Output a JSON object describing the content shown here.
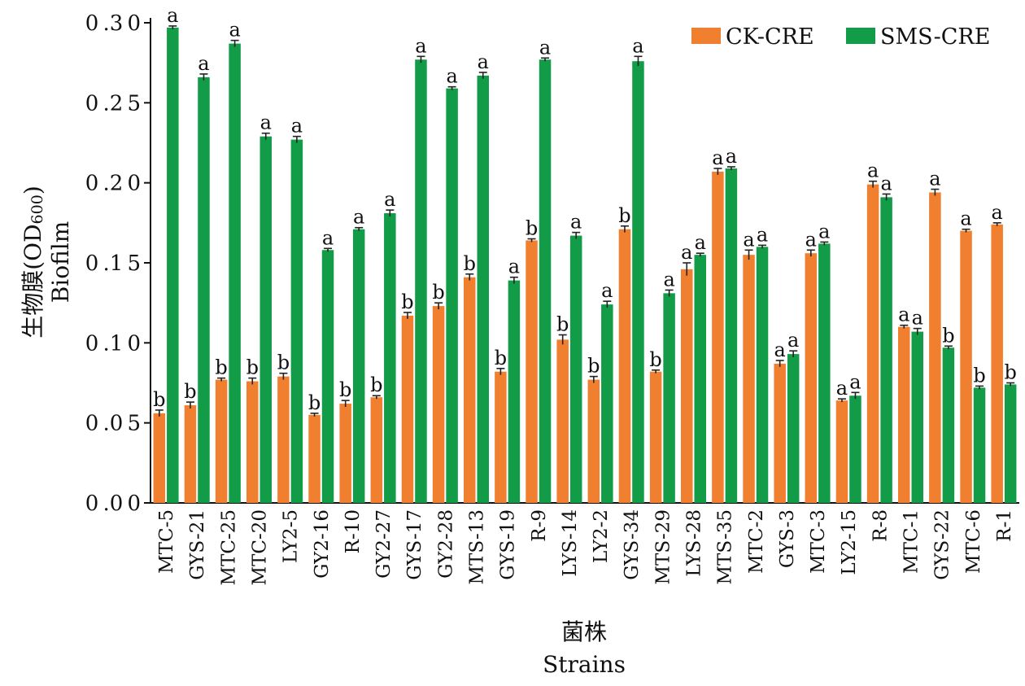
{
  "chart_data": {
    "type": "bar",
    "ylabel_cn": "生物膜(OD",
    "ylabel_sub": "600",
    "ylabel_close": ")",
    "ylabel_en": "Biofilm",
    "xlabel_cn": "菌株",
    "xlabel_en": "Strains",
    "ylim": [
      0,
      0.3
    ],
    "yticks": [
      "0.00",
      "0.05",
      "0.10",
      "0.15",
      "0.20",
      "0.25",
      "0.30"
    ],
    "legend_position": "top-right",
    "categories": [
      "MTC-5",
      "GYS-21",
      "MTC-25",
      "MTC-20",
      "LY2-5",
      "GY2-16",
      "R-10",
      "GY2-27",
      "GYS-17",
      "GY2-28",
      "MTS-13",
      "GYS-19",
      "R-9",
      "LYS-14",
      "LY2-2",
      "GYS-34",
      "MTS-29",
      "LYS-28",
      "MTS-35",
      "MTC-2",
      "GYS-3",
      "MTC-3",
      "LY2-15",
      "R-8",
      "MTC-1",
      "GYS-22",
      "MTC-6",
      "R-1"
    ],
    "series": [
      {
        "name": "CK-CRE",
        "color": "#f07f2f",
        "values": [
          0.056,
          0.061,
          0.077,
          0.076,
          0.079,
          0.055,
          0.062,
          0.066,
          0.117,
          0.123,
          0.141,
          0.082,
          0.164,
          0.102,
          0.077,
          0.171,
          0.082,
          0.146,
          0.207,
          0.155,
          0.087,
          0.156,
          0.064,
          0.199,
          0.11,
          0.194,
          0.17,
          0.174
        ],
        "errors": [
          0.002,
          0.002,
          0.001,
          0.002,
          0.002,
          0.001,
          0.002,
          0.001,
          0.002,
          0.002,
          0.002,
          0.002,
          0.001,
          0.003,
          0.002,
          0.002,
          0.001,
          0.004,
          0.002,
          0.003,
          0.002,
          0.002,
          0.001,
          0.002,
          0.001,
          0.002,
          0.001,
          0.001
        ],
        "labels": [
          "b",
          "b",
          "b",
          "b",
          "b",
          "b",
          "b",
          "b",
          "b",
          "b",
          "b",
          "b",
          "b",
          "b",
          "b",
          "b",
          "b",
          "a",
          "a",
          "a",
          "a",
          "a",
          "a",
          "a",
          "a",
          "a",
          "a",
          "a"
        ]
      },
      {
        "name": "SMS-CRE",
        "color": "#129c48",
        "values": [
          0.297,
          0.266,
          0.287,
          0.229,
          0.227,
          0.158,
          0.171,
          0.181,
          0.277,
          0.259,
          0.267,
          0.139,
          0.277,
          0.167,
          0.124,
          0.276,
          0.131,
          0.155,
          0.209,
          0.16,
          0.093,
          0.162,
          0.067,
          0.191,
          0.107,
          0.097,
          0.072,
          0.074
        ],
        "errors": [
          0.001,
          0.002,
          0.002,
          0.002,
          0.002,
          0.001,
          0.001,
          0.002,
          0.002,
          0.001,
          0.002,
          0.002,
          0.001,
          0.002,
          0.002,
          0.003,
          0.002,
          0.001,
          0.001,
          0.001,
          0.002,
          0.001,
          0.002,
          0.002,
          0.002,
          0.001,
          0.001,
          0.001
        ],
        "labels": [
          "a",
          "a",
          "a",
          "a",
          "a",
          "a",
          "a",
          "a",
          "a",
          "a",
          "a",
          "a",
          "a",
          "a",
          "a",
          "a",
          "a",
          "a",
          "a",
          "a",
          "a",
          "a",
          "a",
          "a",
          "a",
          "b",
          "b",
          "b"
        ]
      }
    ]
  }
}
